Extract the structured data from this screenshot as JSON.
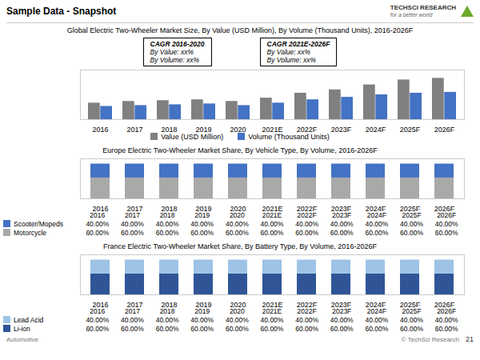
{
  "title": "Sample Data - Snapshot",
  "annotations": [
    "TECHSCI RESEARCH",
    "for a better world",
    "Automotive",
    "© TechSci Research",
    "21"
  ],
  "chart_data": [
    {
      "type": "bar",
      "title": "Global Electric Two-Wheeler Market Size, By Value (USD Million), By Volume (Thousand Units), 2016-2026F",
      "categories": [
        "2016",
        "2017",
        "2018",
        "2019",
        "2020",
        "2021E",
        "2022F",
        "2023F",
        "2024F",
        "2025F",
        "2026F"
      ],
      "series": [
        {
          "name": "Value (USD Million)",
          "color": "#808080",
          "values": [
            1.0,
            1.1,
            1.15,
            1.2,
            1.1,
            1.3,
            1.6,
            1.8,
            2.1,
            2.4,
            2.5
          ]
        },
        {
          "name": "Volume (Thousand Units)",
          "color": "#4472C4",
          "values": [
            0.8,
            0.85,
            0.9,
            0.95,
            0.85,
            1.0,
            1.2,
            1.35,
            1.5,
            1.6,
            1.65
          ]
        }
      ],
      "ylim": [
        0,
        3
      ],
      "tick_labels": "x",
      "annotations": [
        "CAGR 2016-2020",
        "By Value: xx%",
        "By Volume: xx%",
        "CAGR 2021E-2026F",
        "By Value: xx%",
        "By Volume: xx%"
      ]
    },
    {
      "type": "bar",
      "stacked": true,
      "title": "Europe Electric Two-Wheeler Market Share, By Vehicle Type, By Volume, 2016-2026F",
      "categories": [
        "2016",
        "2017",
        "2018",
        "2019",
        "2020",
        "2021E",
        "2022F",
        "2023F",
        "2024F",
        "2025F",
        "2026F"
      ],
      "series": [
        {
          "name": "Scooter/Mopeds",
          "color": "#4472C4",
          "values": [
            40,
            40,
            40,
            40,
            40,
            40,
            40,
            40,
            40,
            40,
            40
          ],
          "value_labels": [
            "40.00%",
            "40.00%",
            "40.00%",
            "40.00%",
            "40.00%",
            "40.00%",
            "40.00%",
            "40.00%",
            "40.00%",
            "40.00%",
            "40.00%"
          ]
        },
        {
          "name": "Motorcycle",
          "color": "#A9A9A9",
          "values": [
            60,
            60,
            60,
            60,
            60,
            60,
            60,
            60,
            60,
            60,
            60
          ],
          "value_labels": [
            "60.00%",
            "60.00%",
            "60.00%",
            "60.00%",
            "60.00%",
            "60.00%",
            "60.00%",
            "60.00%",
            "60.00%",
            "60.00%",
            "60.00%"
          ]
        }
      ],
      "ylim": [
        0,
        115
      ],
      "tick_labels": "x"
    },
    {
      "type": "bar",
      "stacked": true,
      "title": "France Electric Two-Wheeler Market Share, By Battery Type, By Volume, 2016-2026F",
      "categories": [
        "2016",
        "2017",
        "2018",
        "2019",
        "2020",
        "2021E",
        "2022F",
        "2023F",
        "2024F",
        "2025F",
        "2026F"
      ],
      "series": [
        {
          "name": "Lead Acid",
          "color": "#9DC3E6",
          "values": [
            40,
            40,
            40,
            40,
            40,
            40,
            40,
            40,
            40,
            40,
            40
          ],
          "value_labels": [
            "40.00%",
            "40.00%",
            "40.00%",
            "40.00%",
            "40.00%",
            "40.00%",
            "40.00%",
            "40.00%",
            "40.00%",
            "40.00%",
            "40.00%"
          ]
        },
        {
          "name": "Li-ion",
          "color": "#2F5597",
          "values": [
            60,
            60,
            60,
            60,
            60,
            60,
            60,
            60,
            60,
            60,
            60
          ],
          "value_labels": [
            "60.00%",
            "60.00%",
            "60.00%",
            "60.00%",
            "60.00%",
            "60.00%",
            "60.00%",
            "60.00%",
            "60.00%",
            "60.00%",
            "60.00%"
          ]
        }
      ],
      "ylim": [
        0,
        115
      ],
      "tick_labels": "x"
    }
  ]
}
